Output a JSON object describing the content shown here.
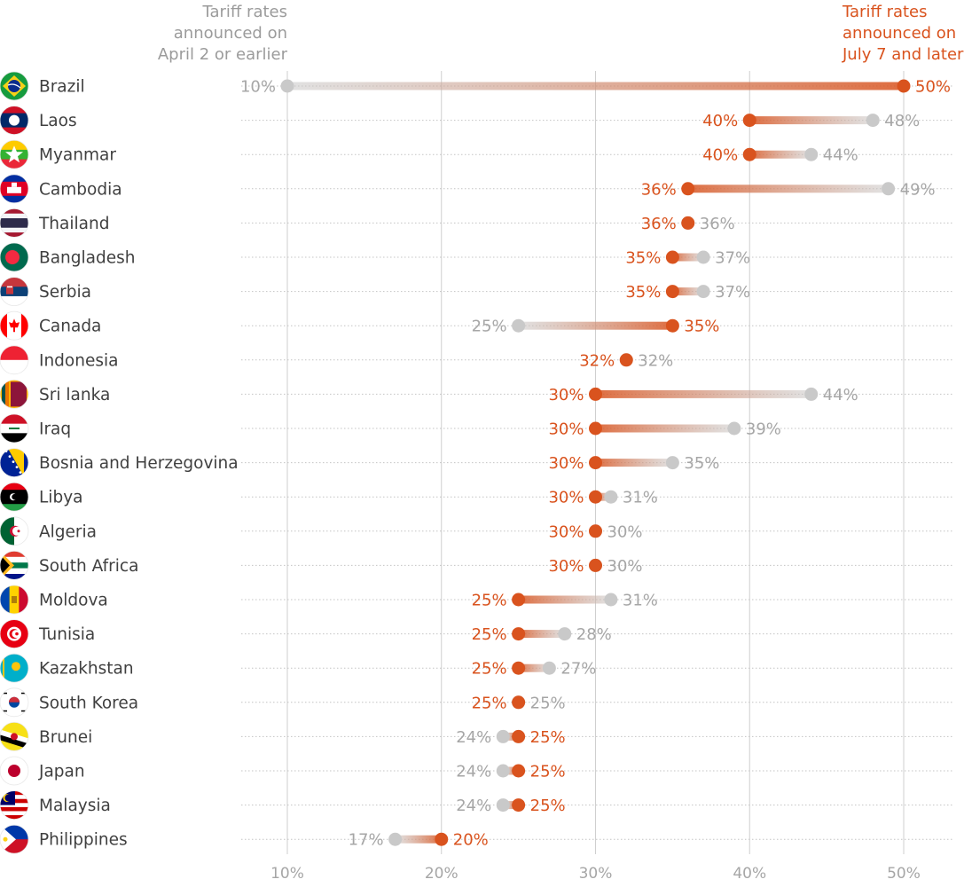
{
  "colors": {
    "new_rate": "#d9531e",
    "old_rate": "#c9c9c9",
    "grid": "#cfcfcf",
    "row_rule": "#c4c4c4",
    "text": "#404040",
    "muted_text": "#a6a6a6"
  },
  "chart_data": {
    "type": "dumbbell",
    "title": "",
    "xlabel": "",
    "ylabel": "",
    "xlim": [
      10,
      50
    ],
    "x_ticks": [
      10,
      20,
      30,
      40,
      50
    ],
    "x_tick_labels": [
      "10%",
      "20%",
      "30%",
      "40%",
      "50%"
    ],
    "grid": true,
    "legend": {
      "old_label": [
        "Tariff rates",
        "announced on",
        "April 2 or earlier"
      ],
      "new_label": [
        "Tariff rates",
        "announced on",
        "July 7 and later"
      ],
      "placement": "top"
    },
    "series": [
      {
        "name": "Tariff rates announced on April 2 or earlier",
        "key": "old",
        "color": "#c9c9c9"
      },
      {
        "name": "Tariff rates announced on July 7 and later",
        "key": "new",
        "color": "#d9531e"
      }
    ],
    "rows": [
      {
        "country": "Brazil",
        "flag": "brazil-flag",
        "old": 10,
        "new": 50
      },
      {
        "country": "Laos",
        "flag": "laos-flag",
        "old": 48,
        "new": 40
      },
      {
        "country": "Myanmar",
        "flag": "myanmar-flag",
        "old": 44,
        "new": 40
      },
      {
        "country": "Cambodia",
        "flag": "cambodia-flag",
        "old": 49,
        "new": 36
      },
      {
        "country": "Thailand",
        "flag": "thailand-flag",
        "old": 36,
        "new": 36
      },
      {
        "country": "Bangladesh",
        "flag": "bangladesh-flag",
        "old": 37,
        "new": 35
      },
      {
        "country": "Serbia",
        "flag": "serbia-flag",
        "old": 37,
        "new": 35
      },
      {
        "country": "Canada",
        "flag": "canada-flag",
        "old": 25,
        "new": 35
      },
      {
        "country": "Indonesia",
        "flag": "indonesia-flag",
        "old": 32,
        "new": 32
      },
      {
        "country": "Sri lanka",
        "flag": "sri-lanka-flag",
        "old": 44,
        "new": 30
      },
      {
        "country": "Iraq",
        "flag": "iraq-flag",
        "old": 39,
        "new": 30
      },
      {
        "country": "Bosnia and Herzegovina",
        "flag": "bosnia-flag",
        "old": 35,
        "new": 30
      },
      {
        "country": "Libya",
        "flag": "libya-flag",
        "old": 31,
        "new": 30
      },
      {
        "country": "Algeria",
        "flag": "algeria-flag",
        "old": 30,
        "new": 30
      },
      {
        "country": "South Africa",
        "flag": "south-africa-flag",
        "old": 30,
        "new": 30
      },
      {
        "country": "Moldova",
        "flag": "moldova-flag",
        "old": 31,
        "new": 25
      },
      {
        "country": "Tunisia",
        "flag": "tunisia-flag",
        "old": 28,
        "new": 25
      },
      {
        "country": "Kazakhstan",
        "flag": "kazakhstan-flag",
        "old": 27,
        "new": 25
      },
      {
        "country": "South Korea",
        "flag": "south-korea-flag",
        "old": 25,
        "new": 25
      },
      {
        "country": "Brunei",
        "flag": "brunei-flag",
        "old": 24,
        "new": 25
      },
      {
        "country": "Japan",
        "flag": "japan-flag",
        "old": 24,
        "new": 25
      },
      {
        "country": "Malaysia",
        "flag": "malaysia-flag",
        "old": 24,
        "new": 25
      },
      {
        "country": "Philippines",
        "flag": "philippines-flag",
        "old": 17,
        "new": 20
      }
    ]
  }
}
